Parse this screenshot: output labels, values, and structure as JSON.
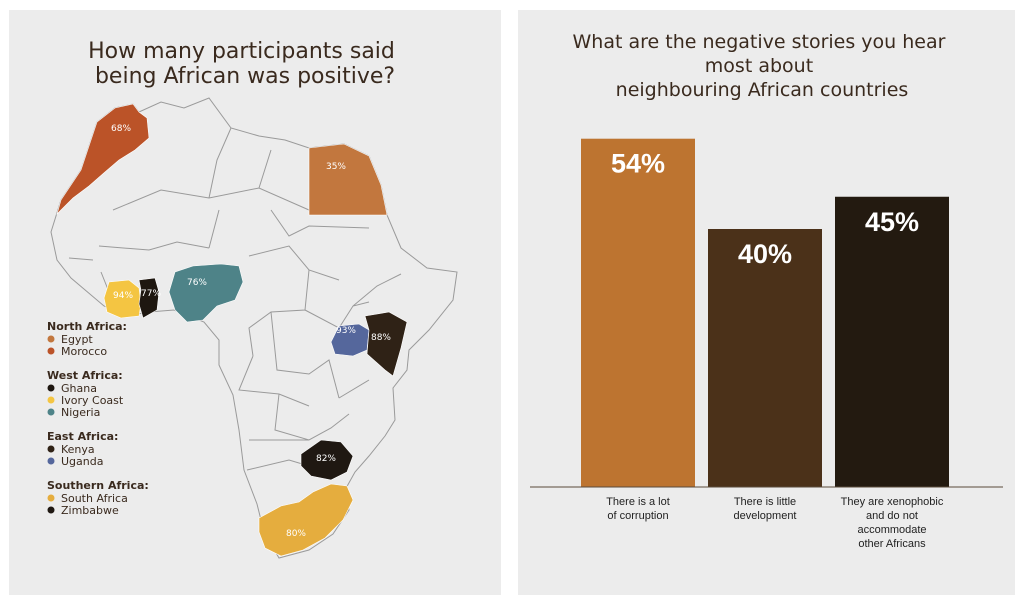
{
  "colors": {
    "egypt": "#c2773e",
    "morocco": "#bb5328",
    "ghana": "#1e1710",
    "ivory_coast": "#f4c542",
    "nigeria": "#4e8388",
    "kenya": "#2f2216",
    "uganda": "#55679c",
    "south_africa": "#e5ad3e",
    "zimbabwe": "#1f1812",
    "bar_1": "#bd7430",
    "bar_2": "#4b3119",
    "bar_3": "#231a10"
  },
  "map": {
    "title_lines": [
      "How many participants said",
      "being African was positive?"
    ],
    "countries": [
      {
        "name": "Morocco",
        "value": "68%",
        "color_key": "morocco"
      },
      {
        "name": "Egypt",
        "value": "35%",
        "color_key": "egypt"
      },
      {
        "name": "Ivory Coast",
        "value": "94%",
        "color_key": "ivory_coast"
      },
      {
        "name": "Ghana",
        "value": "77%",
        "color_key": "ghana"
      },
      {
        "name": "Nigeria",
        "value": "76%",
        "color_key": "nigeria"
      },
      {
        "name": "Uganda",
        "value": "93%",
        "color_key": "uganda"
      },
      {
        "name": "Kenya",
        "value": "88%",
        "color_key": "kenya"
      },
      {
        "name": "Zimbabwe",
        "value": "82%",
        "color_key": "zimbabwe"
      },
      {
        "name": "South Africa",
        "value": "80%",
        "color_key": "south_africa"
      }
    ],
    "legend": [
      {
        "group": "North Africa:",
        "items": [
          {
            "label": "Egypt",
            "color_key": "egypt"
          },
          {
            "label": "Morocco",
            "color_key": "morocco"
          }
        ]
      },
      {
        "group": "West Africa:",
        "items": [
          {
            "label": "Ghana",
            "color_key": "ghana"
          },
          {
            "label": "Ivory Coast",
            "color_key": "ivory_coast"
          },
          {
            "label": "Nigeria",
            "color_key": "nigeria"
          }
        ]
      },
      {
        "group": "East Africa:",
        "items": [
          {
            "label": "Kenya",
            "color_key": "kenya"
          },
          {
            "label": "Uganda",
            "color_key": "uganda"
          }
        ]
      },
      {
        "group": "Southern Africa:",
        "items": [
          {
            "label": "South Africa",
            "color_key": "south_africa"
          },
          {
            "label": "Zimbabwe",
            "color_key": "zimbabwe"
          }
        ]
      }
    ]
  },
  "chart_data": {
    "type": "bar",
    "title_lines": [
      "What are the negative stories you hear",
      "most about",
      "neighbouring African countries"
    ],
    "categories": [
      [
        "There is a lot",
        "of corruption"
      ],
      [
        "There  is little",
        "development"
      ],
      [
        "They are xenophobic",
        "and do not",
        "accommodate",
        "other Africans"
      ]
    ],
    "values": [
      54,
      40,
      45
    ],
    "value_labels": [
      "54%",
      "40%",
      "45%"
    ],
    "bar_color_keys": [
      "bar_1",
      "bar_2",
      "bar_3"
    ],
    "ylim": [
      0,
      60
    ],
    "grid": false,
    "axes_visible": false
  }
}
